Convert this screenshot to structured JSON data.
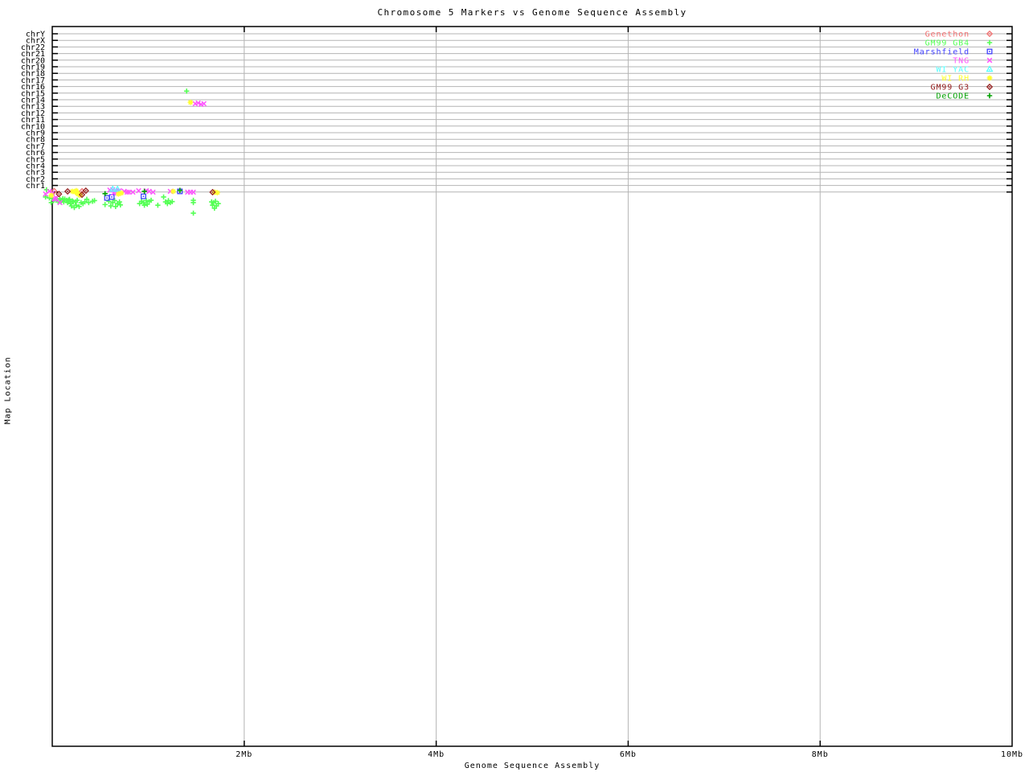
{
  "chart_data": {
    "type": "scatter",
    "title": "Chromosome 5 Markers vs Genome Sequence Assembly",
    "xlabel": "Genome Sequence Assembly",
    "ylabel": "Map Location",
    "x_range_mb": [
      0,
      10
    ],
    "x_ticks": [
      {
        "value": 2,
        "label": "2Mb"
      },
      {
        "value": 4,
        "label": "4Mb"
      },
      {
        "value": 6,
        "label": "6Mb"
      },
      {
        "value": 8,
        "label": "8Mb"
      },
      {
        "value": 10,
        "label": "10Mb"
      }
    ],
    "y_tick_labels_top_to_bottom": [
      "chrY",
      "chrX",
      "chr22",
      "chr21",
      "chr20",
      "chr19",
      "chr18",
      "chr17",
      "chr16",
      "chr15",
      "chr14",
      "chr13",
      "chr12",
      "chr11",
      "chr10",
      "chr9",
      "chr8",
      "chr7",
      "chr6",
      "chr5",
      "chr4",
      "chr3",
      "chr2",
      "chr1"
    ],
    "y_row_units": "chr1=1 .. chrY=24; fractional/negative values lie below the chr1 gridline",
    "grid": "on",
    "grid_color": "#b4b4b4",
    "axis_color": "#000000",
    "background_color": "#ffffff",
    "legend_position": "top-right-inside",
    "series": [
      {
        "name": "Genethon",
        "color": "#f27070",
        "symbol": "diamond-open",
        "points": [
          [
            0.02,
            0.15
          ],
          [
            0.31,
            0.12
          ]
        ]
      },
      {
        "name": "GM99 GB4",
        "color": "#54ff54",
        "symbol": "plus",
        "points": [
          [
            -0.06,
            0.35
          ],
          [
            -0.07,
            -0.75
          ],
          [
            -0.03,
            -0.9
          ],
          [
            -0.01,
            -1.6
          ],
          [
            0.0,
            -1.0
          ],
          [
            0.02,
            -1.2
          ],
          [
            0.04,
            -1.25
          ],
          [
            0.05,
            -1.0
          ],
          [
            0.06,
            -1.4
          ],
          [
            0.08,
            -1.1
          ],
          [
            0.09,
            -1.5
          ],
          [
            0.1,
            -1.25
          ],
          [
            0.11,
            -1.0
          ],
          [
            0.12,
            -1.5
          ],
          [
            0.13,
            -1.05
          ],
          [
            0.15,
            -1.25
          ],
          [
            0.16,
            -1.6
          ],
          [
            0.17,
            -1.2
          ],
          [
            0.18,
            -1.1
          ],
          [
            0.19,
            -1.75
          ],
          [
            0.2,
            -2.1
          ],
          [
            0.21,
            -1.35
          ],
          [
            0.22,
            -1.5
          ],
          [
            0.23,
            -2.35
          ],
          [
            0.24,
            -1.5
          ],
          [
            0.25,
            -2.0
          ],
          [
            0.26,
            -1.25
          ],
          [
            0.28,
            -2.2
          ],
          [
            0.3,
            -1.6
          ],
          [
            0.32,
            -1.75
          ],
          [
            0.34,
            -1.5
          ],
          [
            0.36,
            -1.1
          ],
          [
            0.38,
            -1.6
          ],
          [
            0.42,
            -1.4
          ],
          [
            0.44,
            -1.3
          ],
          [
            0.55,
            -1.9
          ],
          [
            0.59,
            -1.4
          ],
          [
            0.61,
            -2.1
          ],
          [
            0.63,
            -1.6
          ],
          [
            0.65,
            -1.3
          ],
          [
            0.66,
            -2.2
          ],
          [
            0.68,
            -1.75
          ],
          [
            0.7,
            -1.5
          ],
          [
            0.71,
            -1.95
          ],
          [
            0.91,
            -1.75
          ],
          [
            0.93,
            -1.4
          ],
          [
            0.95,
            -1.6
          ],
          [
            0.96,
            -2.0
          ],
          [
            0.98,
            -1.3
          ],
          [
            0.99,
            -1.85
          ],
          [
            1.01,
            -1.45
          ],
          [
            1.03,
            -1.25
          ],
          [
            1.1,
            -2.0
          ],
          [
            1.16,
            -0.75
          ],
          [
            1.18,
            -1.5
          ],
          [
            1.2,
            -1.75
          ],
          [
            1.21,
            -1.3
          ],
          [
            1.23,
            -1.6
          ],
          [
            1.25,
            -1.45
          ],
          [
            1.4,
            15.3
          ],
          [
            1.47,
            -1.25
          ],
          [
            1.47,
            -1.6
          ],
          [
            1.47,
            -3.2
          ],
          [
            1.66,
            -1.5
          ],
          [
            1.67,
            -2.0
          ],
          [
            1.68,
            -1.6
          ],
          [
            1.69,
            -2.45
          ],
          [
            1.7,
            -1.4
          ],
          [
            1.71,
            -2.1
          ],
          [
            1.73,
            -1.75
          ]
        ]
      },
      {
        "name": "Marshfield",
        "color": "#4040ff",
        "symbol": "square-dot",
        "points": [
          [
            0.57,
            -0.9
          ],
          [
            0.62,
            -0.75
          ],
          [
            0.95,
            -0.65
          ],
          [
            1.33,
            0.1
          ]
        ]
      },
      {
        "name": "TNG",
        "color": "#ff54ff",
        "symbol": "x",
        "points": [
          [
            -0.07,
            -0.3
          ],
          [
            -0.03,
            0.1
          ],
          [
            0.0,
            -0.15
          ],
          [
            0.02,
            -1.0
          ],
          [
            0.03,
            -1.1
          ],
          [
            0.04,
            -0.9
          ],
          [
            0.08,
            -1.6
          ],
          [
            0.6,
            0.3
          ],
          [
            0.63,
            0.35
          ],
          [
            0.64,
            -0.15
          ],
          [
            0.66,
            0.2
          ],
          [
            0.68,
            0.1
          ],
          [
            0.7,
            0.2
          ],
          [
            0.75,
            0.1
          ],
          [
            0.78,
            -0.02
          ],
          [
            0.8,
            -0.02
          ],
          [
            0.84,
            -0.02
          ],
          [
            0.9,
            0.2
          ],
          [
            0.98,
            0.2
          ],
          [
            1.01,
            0.1
          ],
          [
            1.05,
            -0.02
          ],
          [
            1.23,
            0.1
          ],
          [
            1.41,
            -0.02
          ],
          [
            1.44,
            -0.02
          ],
          [
            1.47,
            -0.02
          ],
          [
            1.49,
            13.4
          ],
          [
            1.52,
            13.5
          ],
          [
            1.55,
            13.3
          ],
          [
            1.58,
            13.4
          ]
        ]
      },
      {
        "name": "WI YAC",
        "color": "#54ffff",
        "symbol": "triangle-open",
        "points": [
          [
            0.63,
            0.45
          ],
          [
            0.68,
            0.45
          ]
        ]
      },
      {
        "name": "WI RH",
        "color": "#ffff30",
        "symbol": "asterisk",
        "points": [
          [
            -0.01,
            -0.5
          ],
          [
            0.21,
            0.1
          ],
          [
            0.24,
            0.0
          ],
          [
            0.25,
            0.2
          ],
          [
            0.26,
            -0.15
          ],
          [
            0.27,
            -0.3
          ],
          [
            0.29,
            -0.5
          ],
          [
            0.69,
            -0.3
          ],
          [
            0.72,
            -0.15
          ],
          [
            1.26,
            0.1
          ],
          [
            1.44,
            13.6
          ],
          [
            1.69,
            -0.02
          ],
          [
            1.72,
            -0.1
          ]
        ]
      },
      {
        "name": "GM99 G3",
        "color": "#962020",
        "symbol": "diamond-open",
        "points": [
          [
            0.07,
            -0.3
          ],
          [
            0.16,
            0.1
          ],
          [
            0.31,
            -0.4
          ],
          [
            0.35,
            0.2
          ],
          [
            1.67,
            -0.02
          ]
        ]
      },
      {
        "name": "DeCODE",
        "color": "#00a000",
        "symbol": "plus",
        "points": [
          [
            0.55,
            -0.25
          ],
          [
            0.96,
            0.1
          ],
          [
            1.33,
            0.25
          ]
        ]
      }
    ]
  }
}
